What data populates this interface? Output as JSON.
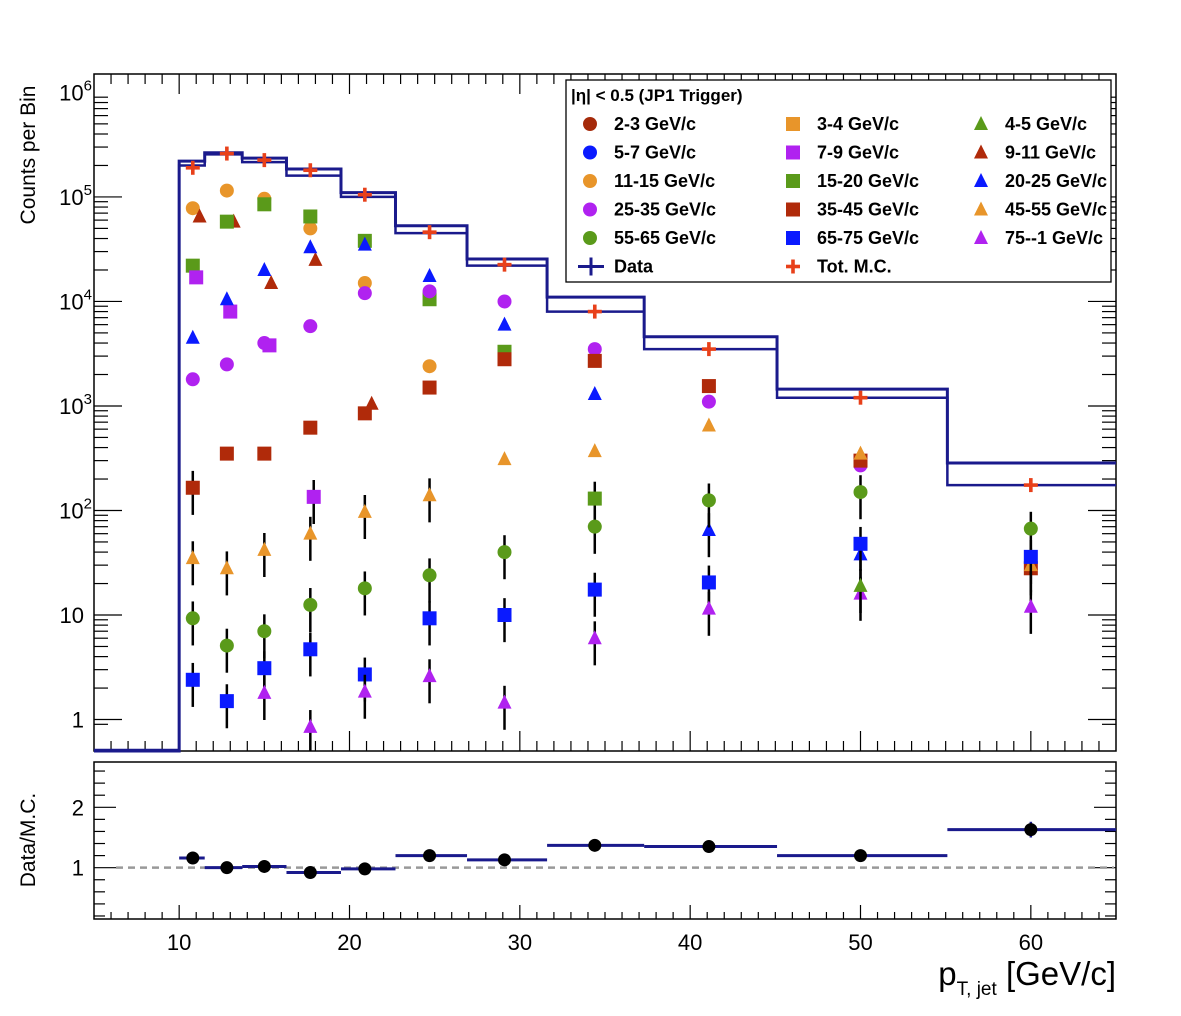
{
  "chart_data": [
    {
      "type": "scatter",
      "panel": "top",
      "ylabel": "Counts per Bin",
      "yscale": "log",
      "xlim": [
        5,
        65
      ],
      "ylim": [
        0.5,
        1500000
      ],
      "y_tick_labels": [
        {
          "value": 1000000,
          "base": "10",
          "exp": "6"
        },
        {
          "value": 100000,
          "base": "10",
          "exp": "5"
        },
        {
          "value": 10000,
          "base": "10",
          "exp": "4"
        },
        {
          "value": 1000,
          "base": "10",
          "exp": "3"
        },
        {
          "value": 100,
          "base": "10",
          "exp": "2"
        },
        {
          "value": 10,
          "base": "10",
          "exp": ""
        },
        {
          "value": 1,
          "base": "1",
          "exp": ""
        }
      ],
      "legend": {
        "title": "|η| < 0.5 (JP1 Trigger)",
        "placement": "top-right",
        "entries": [
          {
            "label": "2-3 GeV/c",
            "marker": "circle",
            "color": "#a52a0a"
          },
          {
            "label": "3-4 GeV/c",
            "marker": "square",
            "color": "#e8952a"
          },
          {
            "label": "4-5 GeV/c",
            "marker": "triangle",
            "color": "#5a9a1a"
          },
          {
            "label": "5-7 GeV/c",
            "marker": "circle",
            "color": "#0a1aff"
          },
          {
            "label": "7-9 GeV/c",
            "marker": "square",
            "color": "#b022f0"
          },
          {
            "label": "9-11 GeV/c",
            "marker": "triangle",
            "color": "#b02a0a"
          },
          {
            "label": "11-15 GeV/c",
            "marker": "circle",
            "color": "#e8952a"
          },
          {
            "label": "15-20 GeV/c",
            "marker": "square",
            "color": "#5a9a1a"
          },
          {
            "label": "20-25 GeV/c",
            "marker": "triangle",
            "color": "#0a1aff"
          },
          {
            "label": "25-35 GeV/c",
            "marker": "circle",
            "color": "#b022f0"
          },
          {
            "label": "35-45 GeV/c",
            "marker": "square",
            "color": "#b02a0a"
          },
          {
            "label": "45-55 GeV/c",
            "marker": "triangle",
            "color": "#e8952a"
          },
          {
            "label": "55-65 GeV/c",
            "marker": "circle",
            "color": "#5a9a1a"
          },
          {
            "label": "65-75 GeV/c",
            "marker": "square",
            "color": "#0a1aff"
          },
          {
            "label": "75--1 GeV/c",
            "marker": "triangle",
            "color": "#b022f0"
          },
          {
            "label": "Data",
            "marker": "line",
            "color": "#1a1a8c"
          },
          {
            "label": "Tot. M.C.",
            "marker": "plus",
            "color": "#e8401a"
          }
        ]
      },
      "data_histogram": {
        "name": "Data",
        "color": "#1a1a8c",
        "bin_edges": [
          10,
          11.5,
          13.7,
          16.3,
          19.5,
          22.7,
          26.9,
          31.6,
          37.3,
          45.1,
          55.1,
          65
        ],
        "values": [
          220000,
          265000,
          235000,
          185000,
          110000,
          53000,
          25500,
          11000,
          4600,
          1450,
          285
        ],
        "mc_values": [
          200000,
          255000,
          215000,
          160000,
          100000,
          45000,
          22000,
          8000,
          3500,
          1200,
          175
        ]
      },
      "series": [
        {
          "name": "Tot. M.C.",
          "marker": "plus",
          "color": "#e8401a",
          "points": [
            [
              10.8,
              190000
            ],
            [
              12.8,
              260000
            ],
            [
              15.0,
              225000
            ],
            [
              17.7,
              180000
            ],
            [
              20.9,
              105000
            ],
            [
              24.7,
              46000
            ],
            [
              29.1,
              22500
            ],
            [
              34.4,
              8000
            ],
            [
              41.1,
              3500
            ],
            [
              50.0,
              1200
            ],
            [
              60.0,
              175
            ]
          ]
        },
        {
          "name": "11-15 GeV/c",
          "marker": "circle",
          "color": "#e8952a",
          "points": [
            [
              10.8,
              78000
            ],
            [
              12.8,
              115000
            ],
            [
              15.0,
              96000
            ],
            [
              17.7,
              50000
            ],
            [
              20.9,
              15000
            ],
            [
              24.7,
              2400
            ]
          ]
        },
        {
          "name": "9-11 GeV/c",
          "marker": "triangle",
          "color": "#b02a0a",
          "points": [
            [
              11.2,
              65000
            ],
            [
              13.2,
              58000
            ],
            [
              15.4,
              15000
            ],
            [
              18.0,
              25000
            ],
            [
              21.3,
              1050
            ]
          ]
        },
        {
          "name": "15-20 GeV/c",
          "marker": "square",
          "color": "#5a9a1a",
          "points": [
            [
              10.8,
              22000
            ],
            [
              12.8,
              58000
            ],
            [
              15.0,
              85000
            ],
            [
              17.7,
              65000
            ],
            [
              20.9,
              38000
            ],
            [
              24.7,
              10500
            ],
            [
              29.1,
              3300
            ],
            [
              34.4,
              130
            ]
          ]
        },
        {
          "name": "7-9 GeV/c",
          "marker": "square",
          "color": "#b022f0",
          "points": [
            [
              11.0,
              17000
            ],
            [
              13.0,
              8000
            ],
            [
              15.3,
              3800
            ],
            [
              17.9,
              135
            ]
          ]
        },
        {
          "name": "20-25 GeV/c",
          "marker": "triangle",
          "color": "#0a1aff",
          "points": [
            [
              10.8,
              4500
            ],
            [
              12.8,
              10500
            ],
            [
              15.0,
              20000
            ],
            [
              17.7,
              33000
            ],
            [
              20.9,
              35000
            ],
            [
              24.7,
              17500
            ],
            [
              29.1,
              6000
            ],
            [
              34.4,
              1300
            ],
            [
              41.1,
              65
            ],
            [
              50.0,
              38
            ]
          ]
        },
        {
          "name": "25-35 GeV/c",
          "marker": "circle",
          "color": "#b022f0",
          "points": [
            [
              10.8,
              1800
            ],
            [
              12.8,
              2500
            ],
            [
              15.0,
              4000
            ],
            [
              17.7,
              5800
            ],
            [
              20.9,
              12000
            ],
            [
              24.7,
              12500
            ],
            [
              29.1,
              10000
            ],
            [
              34.4,
              3500
            ],
            [
              41.1,
              1100
            ],
            [
              50.0,
              270
            ]
          ]
        },
        {
          "name": "35-45 GeV/c",
          "marker": "square",
          "color": "#b02a0a",
          "points": [
            [
              10.8,
              165
            ],
            [
              12.8,
              350
            ],
            [
              15.0,
              350
            ],
            [
              17.7,
              620
            ],
            [
              20.9,
              850
            ],
            [
              24.7,
              1500
            ],
            [
              29.1,
              2800
            ],
            [
              34.4,
              2700
            ],
            [
              41.1,
              1550
            ],
            [
              50.0,
              300
            ],
            [
              60.0,
              28
            ]
          ]
        },
        {
          "name": "45-55 GeV/c",
          "marker": "triangle",
          "color": "#e8952a",
          "points": [
            [
              10.8,
              35
            ],
            [
              12.8,
              28
            ],
            [
              15.0,
              42
            ],
            [
              17.7,
              60
            ],
            [
              20.9,
              97
            ],
            [
              24.7,
              140
            ],
            [
              29.1,
              310
            ],
            [
              34.4,
              370
            ],
            [
              41.1,
              650
            ],
            [
              50.0,
              350
            ],
            [
              60.0,
              30
            ]
          ]
        },
        {
          "name": "55-65 GeV/c",
          "marker": "circle",
          "color": "#5a9a1a",
          "points": [
            [
              10.8,
              9.3
            ],
            [
              12.8,
              5.1
            ],
            [
              15.0,
              7.0
            ],
            [
              17.7,
              12.5
            ],
            [
              20.9,
              18.0
            ],
            [
              24.7,
              24.0
            ],
            [
              29.1,
              40.0
            ],
            [
              34.4,
              70.0
            ],
            [
              41.1,
              125
            ],
            [
              50.0,
              150
            ],
            [
              60.0,
              67
            ]
          ]
        },
        {
          "name": "65-75 GeV/c",
          "marker": "square",
          "color": "#0a1aff",
          "points": [
            [
              10.8,
              2.4
            ],
            [
              12.8,
              1.5
            ],
            [
              15.0,
              3.1
            ],
            [
              17.7,
              4.7
            ],
            [
              20.9,
              2.7
            ],
            [
              24.7,
              9.3
            ],
            [
              29.1,
              10.0
            ],
            [
              34.4,
              17.5
            ],
            [
              41.1,
              20.5
            ],
            [
              50.0,
              48
            ],
            [
              60.0,
              36
            ]
          ]
        },
        {
          "name": "75--1 GeV/c",
          "marker": "triangle",
          "color": "#b022f0",
          "points": [
            [
              15.0,
              1.8
            ],
            [
              17.7,
              0.85
            ],
            [
              20.9,
              1.85
            ],
            [
              24.7,
              2.6
            ],
            [
              29.1,
              1.45
            ],
            [
              34.4,
              6.0
            ],
            [
              41.1,
              11.5
            ],
            [
              50.0,
              16
            ],
            [
              60.0,
              12
            ]
          ]
        },
        {
          "name": "4-5 GeV/c",
          "marker": "triangle",
          "color": "#5a9a1a",
          "points": [
            [
              50.0,
              19
            ]
          ]
        }
      ]
    },
    {
      "type": "scatter",
      "panel": "bottom",
      "ylabel": "Data/M.C.",
      "xlabel": "p",
      "xlabel_sub": "T, jet",
      "xlabel_units": " [GeV/c]",
      "xlim": [
        5,
        65
      ],
      "ylim": [
        0.15,
        2.75
      ],
      "x_tick_labels": [
        "10",
        "20",
        "30",
        "40",
        "50",
        "60"
      ],
      "x_tick_values": [
        10,
        20,
        30,
        40,
        50,
        60
      ],
      "y_tick_labels": [
        "1",
        "2"
      ],
      "y_tick_values": [
        1,
        2
      ],
      "reference_line": 1,
      "ratio_bins": [
        {
          "x0": 10,
          "x1": 11.5,
          "x": 10.8,
          "y": 1.16
        },
        {
          "x0": 11.5,
          "x1": 13.7,
          "x": 12.8,
          "y": 1.0
        },
        {
          "x0": 13.7,
          "x1": 16.3,
          "x": 15.0,
          "y": 1.02
        },
        {
          "x0": 16.3,
          "x1": 19.5,
          "x": 17.7,
          "y": 0.92
        },
        {
          "x0": 19.5,
          "x1": 22.7,
          "x": 20.9,
          "y": 0.98
        },
        {
          "x0": 22.7,
          "x1": 26.9,
          "x": 24.7,
          "y": 1.2
        },
        {
          "x0": 26.9,
          "x1": 31.6,
          "x": 29.1,
          "y": 1.13
        },
        {
          "x0": 31.6,
          "x1": 37.3,
          "x": 34.4,
          "y": 1.37
        },
        {
          "x0": 37.3,
          "x1": 45.1,
          "x": 41.1,
          "y": 1.35
        },
        {
          "x0": 45.1,
          "x1": 55.1,
          "x": 50.0,
          "y": 1.2
        },
        {
          "x0": 55.1,
          "x1": 65,
          "x": 60.0,
          "y": 1.63
        }
      ]
    }
  ]
}
